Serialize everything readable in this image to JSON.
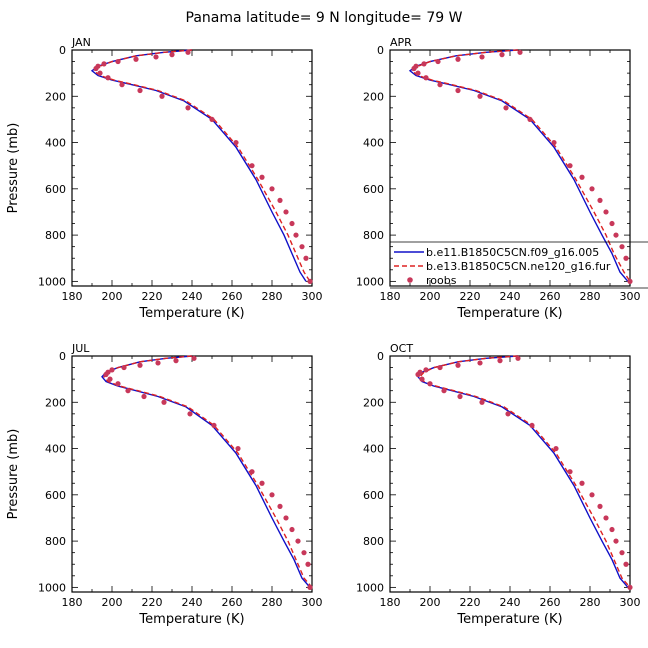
{
  "chart_data": {
    "type": "line",
    "title": "Panama  latitude= 9 N longitude= 79 W",
    "xlabel": "Temperature (K)",
    "ylabel": "Pressure (mb)",
    "xlim": [
      180,
      300
    ],
    "ylim": [
      1020,
      0
    ],
    "xticks": [
      180,
      200,
      220,
      240,
      260,
      280,
      300
    ],
    "yticks": [
      0,
      200,
      400,
      600,
      800,
      1000
    ],
    "legend": {
      "placement": "inside APR panel, lower right",
      "entries": [
        {
          "label": "b.e11.B1850C5CN.f09_g16.005",
          "color": "#1010c8",
          "style": "solid"
        },
        {
          "label": "b.e13.B1850C5CN.ne120_g16.fur",
          "color": "#dd2222",
          "style": "dashed"
        },
        {
          "label": "roobs",
          "color": "#c8385a",
          "style": "marker"
        }
      ]
    },
    "panels": [
      {
        "name": "JAN",
        "series": [
          {
            "name": "b.e11.B1850C5CN.f09_g16.005",
            "x": [
              240,
              226,
              212,
              200,
              193,
              190,
              193,
              200,
              210,
              222,
              236,
              250,
              262,
              272,
              280,
              286,
              290,
              294,
              297
            ],
            "y": [
              0,
              10,
              25,
              50,
              70,
              90,
              110,
              130,
              150,
              175,
              220,
              300,
              420,
              560,
              700,
              800,
              880,
              960,
              1000
            ]
          },
          {
            "name": "b.e13.B1850C5CN.ne120_g16.fur",
            "x": [
              240,
              226,
              212,
              200,
              194,
              191,
              194,
              201,
              211,
              223,
              237,
              251,
              263,
              273,
              282,
              288,
              292,
              296,
              299
            ],
            "y": [
              0,
              10,
              25,
              50,
              70,
              90,
              110,
              130,
              150,
              175,
              220,
              300,
              420,
              560,
              700,
              800,
              880,
              960,
              1000
            ]
          },
          {
            "name": "roobs",
            "x": [
              238,
              230,
              222,
              212,
              203,
              196,
              193,
              192,
              194,
              198,
              205,
              214,
              225,
              238,
              250,
              262,
              270,
              275,
              280,
              284,
              287,
              290,
              292,
              295,
              297,
              299
            ],
            "y": [
              10,
              20,
              30,
              40,
              50,
              60,
              70,
              80,
              100,
              120,
              150,
              175,
              200,
              250,
              300,
              400,
              500,
              550,
              600,
              650,
              700,
              750,
              800,
              850,
              900,
              1000
            ]
          }
        ]
      },
      {
        "name": "APR",
        "series": [
          {
            "name": "b.e11.B1850C5CN.f09_g16.005",
            "x": [
              244,
              228,
              213,
              200,
              193,
              190,
              193,
              200,
              210,
              222,
              236,
              250,
              262,
              272,
              280,
              286,
              291,
              295,
              299
            ],
            "y": [
              0,
              10,
              25,
              50,
              70,
              90,
              110,
              130,
              150,
              175,
              220,
              300,
              420,
              560,
              700,
              800,
              880,
              960,
              1000
            ]
          },
          {
            "name": "b.e13.B1850C5CN.ne120_g16.fur",
            "x": [
              244,
              228,
              213,
              200,
              194,
              191,
              194,
              201,
              211,
              223,
              237,
              251,
              263,
              273,
              282,
              288,
              292,
              297,
              300
            ],
            "y": [
              0,
              10,
              25,
              50,
              70,
              90,
              110,
              130,
              150,
              175,
              220,
              300,
              420,
              560,
              700,
              800,
              880,
              960,
              1000
            ]
          },
          {
            "name": "roobs",
            "x": [
              245,
              236,
              226,
              214,
              204,
              197,
              193,
              192,
              194,
              198,
              205,
              214,
              225,
              238,
              250,
              262,
              270,
              276,
              281,
              285,
              288,
              291,
              293,
              296,
              298,
              300
            ],
            "y": [
              10,
              20,
              30,
              40,
              50,
              60,
              70,
              80,
              100,
              120,
              150,
              175,
              200,
              250,
              300,
              400,
              500,
              550,
              600,
              650,
              700,
              750,
              800,
              850,
              900,
              1000
            ]
          }
        ]
      },
      {
        "name": "JUL",
        "series": [
          {
            "name": "b.e11.B1850C5CN.f09_g16.005",
            "x": [
              240,
              227,
              214,
              203,
              197,
              195,
              197,
              203,
              212,
              223,
              237,
              250,
              262,
              272,
              280,
              286,
              291,
              295,
              299
            ],
            "y": [
              0,
              10,
              25,
              50,
              70,
              90,
              110,
              130,
              150,
              175,
              220,
              300,
              420,
              560,
              700,
              800,
              880,
              960,
              1000
            ]
          },
          {
            "name": "b.e13.B1850C5CN.ne120_g16.fur",
            "x": [
              240,
              227,
              214,
              203,
              198,
              196,
              198,
              204,
              213,
              224,
              238,
              251,
              263,
              273,
              282,
              288,
              292,
              296,
              300
            ],
            "y": [
              0,
              10,
              25,
              50,
              70,
              90,
              110,
              130,
              150,
              175,
              220,
              300,
              420,
              560,
              700,
              800,
              880,
              960,
              1000
            ]
          },
          {
            "name": "roobs",
            "x": [
              241,
              232,
              223,
              214,
              206,
              200,
              198,
              197,
              199,
              203,
              208,
              216,
              226,
              239,
              251,
              263,
              270,
              275,
              280,
              284,
              287,
              290,
              293,
              296,
              298,
              299
            ],
            "y": [
              10,
              20,
              30,
              40,
              50,
              60,
              70,
              80,
              100,
              120,
              150,
              175,
              200,
              250,
              300,
              400,
              500,
              550,
              600,
              650,
              700,
              750,
              800,
              850,
              900,
              1000
            ]
          }
        ]
      },
      {
        "name": "OCT",
        "series": [
          {
            "name": "b.e11.B1850C5CN.f09_g16.005",
            "x": [
              244,
              228,
              214,
              202,
              196,
              194,
              196,
              202,
              211,
              222,
              236,
              250,
              262,
              272,
              280,
              286,
              291,
              295,
              299
            ],
            "y": [
              0,
              10,
              25,
              50,
              70,
              90,
              110,
              130,
              150,
              175,
              220,
              300,
              420,
              560,
              700,
              800,
              880,
              960,
              1000
            ]
          },
          {
            "name": "b.e13.B1850C5CN.ne120_g16.fur",
            "x": [
              244,
              228,
              214,
              202,
              197,
              195,
              197,
              203,
              212,
              223,
              237,
              251,
              263,
              273,
              282,
              288,
              292,
              296,
              300
            ],
            "y": [
              0,
              10,
              25,
              50,
              70,
              90,
              110,
              130,
              150,
              175,
              220,
              300,
              420,
              560,
              700,
              800,
              880,
              960,
              1000
            ]
          },
          {
            "name": "roobs",
            "x": [
              244,
              235,
              225,
              214,
              205,
              198,
              195,
              194,
              196,
              200,
              207,
              215,
              226,
              239,
              251,
              263,
              270,
              276,
              281,
              285,
              288,
              291,
              293,
              296,
              298,
              300
            ],
            "y": [
              10,
              20,
              30,
              40,
              50,
              60,
              70,
              80,
              100,
              120,
              150,
              175,
              200,
              250,
              300,
              400,
              500,
              550,
              600,
              650,
              700,
              750,
              800,
              850,
              900,
              1000
            ]
          }
        ]
      }
    ]
  }
}
